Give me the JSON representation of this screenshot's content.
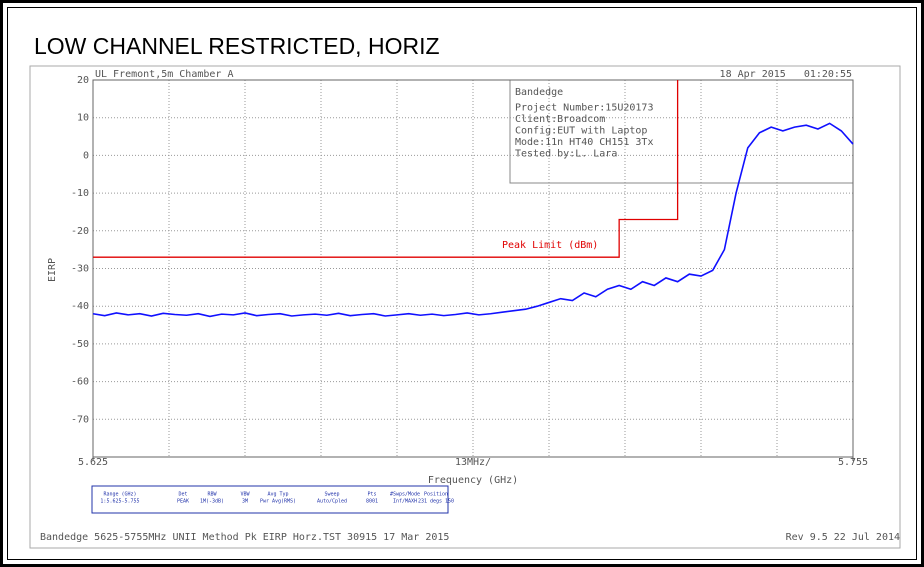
{
  "chart_data": {
    "type": "line",
    "title": "LOW CHANNEL RESTRICTED, HORIZ",
    "header_left": "UL Fremont,5m Chamber A",
    "header_right": "18 Apr 2015   01:20:55",
    "y_label": "EIRP",
    "x_label": "Frequency (GHz)",
    "x_span_label": "13MHz/",
    "limit_label": "Peak Limit (dBm)",
    "info_box": [
      "Bandedge",
      "Project Number:15U20173",
      "Client:Broadcom",
      "Config:EUT with Laptop",
      "Mode:11n HT40 CH151 3Tx",
      "Tested by:L. Lara"
    ],
    "settings_table": {
      "headers": [
        "Range (GHz)",
        "Det",
        "RBW",
        "VBW",
        "Avg Typ",
        "Sweep",
        "Pts",
        "#Swps/Mode",
        "Position"
      ],
      "values": [
        "1:5.625-5.755",
        "PEAK",
        "1M(-3dB)",
        "3M",
        "Pwr Avg(RMS)",
        "Auto/Cpled",
        "8001",
        "Inf/MAXH",
        "231 degs 150"
      ]
    },
    "footer_left": "Bandedge 5625-5755MHz UNII Method Pk EIRP Horz.TST 30915 17 Mar 2015",
    "footer_right": "Rev 9.5 22 Jul 2014",
    "xlim": [
      5.625,
      5.755
    ],
    "xticks": [
      5.625,
      5.755
    ],
    "ylim": [
      -80,
      20
    ],
    "yticks": [
      20,
      10,
      0,
      -10,
      -20,
      -30,
      -40,
      -50,
      -60,
      -70
    ],
    "grid": true,
    "series": [
      {
        "color": "#1010ff",
        "x": [
          5.625,
          5.627,
          5.629,
          5.631,
          5.633,
          5.635,
          5.637,
          5.639,
          5.641,
          5.643,
          5.645,
          5.647,
          5.649,
          5.651,
          5.653,
          5.655,
          5.657,
          5.659,
          5.661,
          5.663,
          5.665,
          5.667,
          5.669,
          5.671,
          5.673,
          5.675,
          5.677,
          5.679,
          5.681,
          5.683,
          5.685,
          5.687,
          5.689,
          5.691,
          5.693,
          5.695,
          5.697,
          5.699,
          5.701,
          5.703,
          5.705,
          5.707,
          5.709,
          5.711,
          5.713,
          5.715,
          5.717,
          5.719,
          5.721,
          5.723,
          5.725,
          5.727,
          5.729,
          5.731,
          5.733,
          5.735,
          5.737,
          5.739,
          5.741,
          5.743,
          5.745,
          5.747,
          5.749,
          5.751,
          5.753,
          5.755
        ],
        "values": [
          -42,
          -42.5,
          -41.8,
          -42.3,
          -42,
          -42.6,
          -41.9,
          -42.2,
          -42.4,
          -42,
          -42.7,
          -42.1,
          -42.3,
          -41.8,
          -42.5,
          -42.2,
          -42,
          -42.6,
          -42.3,
          -42.1,
          -42.4,
          -41.9,
          -42.5,
          -42.2,
          -42,
          -42.6,
          -42.3,
          -42,
          -42.4,
          -42.1,
          -42.5,
          -42.2,
          -41.8,
          -42.3,
          -42,
          -41.6,
          -41.2,
          -40.8,
          -40,
          -39,
          -38,
          -38.5,
          -36.5,
          -37.5,
          -35.5,
          -34.5,
          -35.5,
          -33.5,
          -34.5,
          -32.5,
          -33.5,
          -31.5,
          -32,
          -30.5,
          -25,
          -10,
          2,
          6,
          7.5,
          6.5,
          7.5,
          8,
          7,
          8.5,
          6.5,
          3
        ]
      },
      {
        "color": "#e00000",
        "x": [
          5.625,
          5.715,
          5.715,
          5.725,
          5.725
        ],
        "values": [
          -27,
          -27,
          -17,
          -17,
          20
        ]
      }
    ]
  }
}
